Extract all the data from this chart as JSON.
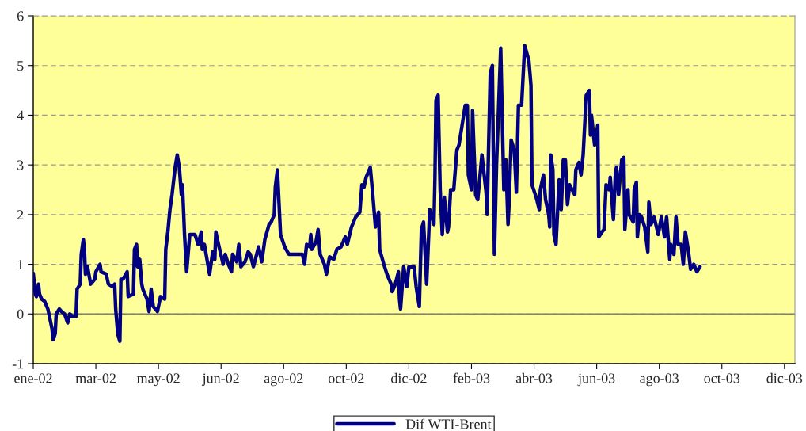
{
  "chart_data": {
    "type": "line",
    "x": [
      "2002-01-01",
      "2002-01-03",
      "2002-01-04",
      "2002-01-06",
      "2002-01-07",
      "2002-01-09",
      "2002-01-12",
      "2002-01-15",
      "2002-01-17",
      "2002-01-19",
      "2002-01-20",
      "2002-01-22",
      "2002-01-23",
      "2002-01-26",
      "2002-01-28",
      "2002-01-31",
      "2002-02-03",
      "2002-02-05",
      "2002-02-08",
      "2002-02-11",
      "2002-02-12",
      "2002-02-15",
      "2002-02-16",
      "2002-02-18",
      "2002-02-19",
      "2002-02-20",
      "2002-02-22",
      "2002-02-25",
      "2002-03-01",
      "2002-03-02",
      "2002-03-06",
      "2002-03-07",
      "2002-03-12",
      "2002-03-14",
      "2002-03-18",
      "2002-03-20",
      "2002-03-21",
      "2002-03-23",
      "2002-03-25",
      "2002-03-26",
      "2002-03-28",
      "2002-04-01",
      "2002-04-02",
      "2002-04-07",
      "2002-04-08",
      "2002-04-10",
      "2002-04-11",
      "2002-04-13",
      "2002-04-15",
      "2002-04-16",
      "2002-04-20",
      "2002-04-22",
      "2002-04-24",
      "2002-04-26",
      "2002-04-30",
      "2002-05-03",
      "2002-05-07",
      "2002-05-08",
      "2002-05-10",
      "2002-05-12",
      "2002-05-14",
      "2002-05-17",
      "2002-05-19",
      "2002-05-21",
      "2002-05-23",
      "2002-05-24",
      "2002-05-26",
      "2002-05-28",
      "2002-05-29",
      "2002-05-31",
      "2002-06-05",
      "2002-06-08",
      "2002-06-11",
      "2002-06-12",
      "2002-06-14",
      "2002-06-19",
      "2002-06-22",
      "2002-06-24",
      "2002-06-25",
      "2002-06-27",
      "2002-07-02",
      "2002-07-04",
      "2002-07-07",
      "2002-07-10",
      "2002-07-11",
      "2002-07-15",
      "2002-07-17",
      "2002-07-19",
      "2002-07-23",
      "2002-07-26",
      "2002-07-28",
      "2002-07-31",
      "2002-08-05",
      "2002-08-08",
      "2002-08-11",
      "2002-08-15",
      "2002-08-17",
      "2002-08-20",
      "2002-08-21",
      "2002-08-23",
      "2002-08-26",
      "2002-08-30",
      "2002-09-03",
      "2002-09-09",
      "2002-09-16",
      "2002-09-18",
      "2002-09-20",
      "2002-09-23",
      "2002-09-24",
      "2002-09-25",
      "2002-09-29",
      "2002-10-01",
      "2002-10-03",
      "2002-10-07",
      "2002-10-09",
      "2002-10-12",
      "2002-10-16",
      "2002-10-19",
      "2002-10-23",
      "2002-10-27",
      "2002-10-29",
      "2002-11-02",
      "2002-11-06",
      "2002-11-10",
      "2002-11-12",
      "2002-11-14",
      "2002-11-16",
      "2002-11-20",
      "2002-11-22",
      "2002-11-25",
      "2002-11-28",
      "2002-11-29",
      "2002-12-03",
      "2002-12-06",
      "2002-12-10",
      "2002-12-11",
      "2002-12-14",
      "2002-12-17",
      "2002-12-18",
      "2002-12-19",
      "2002-12-22",
      "2002-12-25",
      "2002-12-27",
      "2003-01-01",
      "2003-01-03",
      "2003-01-06",
      "2003-01-08",
      "2003-01-10",
      "2003-01-12",
      "2003-01-13",
      "2003-01-16",
      "2003-01-18",
      "2003-01-20",
      "2003-01-21",
      "2003-01-22",
      "2003-01-24",
      "2003-01-26",
      "2003-01-28",
      "2003-01-30",
      "2003-02-02",
      "2003-02-03",
      "2003-02-05",
      "2003-02-08",
      "2003-02-11",
      "2003-02-13",
      "2003-02-16",
      "2003-02-19",
      "2003-02-21",
      "2003-02-22",
      "2003-02-25",
      "2003-02-26",
      "2003-03-01",
      "2003-03-03",
      "2003-03-07",
      "2003-03-11",
      "2003-03-12",
      "2003-03-13",
      "2003-03-15",
      "2003-03-17",
      "2003-03-19",
      "2003-03-21",
      "2003-03-25",
      "2003-03-28",
      "2003-03-30",
      "2003-04-01",
      "2003-04-02",
      "2003-04-04",
      "2003-04-07",
      "2003-04-09",
      "2003-04-11",
      "2003-04-14",
      "2003-04-17",
      "2003-04-21",
      "2003-04-23",
      "2003-04-24",
      "2003-04-28",
      "2003-05-01",
      "2003-05-02",
      "2003-05-05",
      "2003-05-07",
      "2003-05-10",
      "2003-05-11",
      "2003-05-12",
      "2003-05-14",
      "2003-05-15",
      "2003-05-17",
      "2003-05-20",
      "2003-05-22",
      "2003-05-24",
      "2003-05-26",
      "2003-05-28",
      "2003-05-30",
      "2003-06-04",
      "2003-06-05",
      "2003-06-08",
      "2003-06-10",
      "2003-06-12",
      "2003-06-13",
      "2003-06-15",
      "2003-06-18",
      "2003-06-19",
      "2003-06-20",
      "2003-06-23",
      "2003-06-26",
      "2003-06-27",
      "2003-06-30",
      "2003-07-02",
      "2003-07-04",
      "2003-07-07",
      "2003-07-08",
      "2003-07-11",
      "2003-07-13",
      "2003-07-14",
      "2003-07-16",
      "2003-07-19",
      "2003-07-21",
      "2003-07-22",
      "2003-07-25",
      "2003-07-26",
      "2003-07-30",
      "2003-07-31",
      "2003-08-02",
      "2003-08-03",
      "2003-08-05",
      "2003-08-07",
      "2003-08-10",
      "2003-08-13",
      "2003-08-14",
      "2003-08-16",
      "2003-08-19",
      "2003-08-23",
      "2003-08-26",
      "2003-08-29",
      "2003-08-31",
      "2003-09-03",
      "2003-09-04",
      "2003-09-07",
      "2003-09-09",
      "2003-09-11",
      "2003-09-14",
      "2003-09-16",
      "2003-09-18",
      "2003-09-21",
      "2003-09-23",
      "2003-09-26",
      "2003-09-27",
      "2003-09-29",
      "2003-10-02"
    ],
    "series": [
      {
        "name": "Dif WTI-Brent",
        "color": "#000080",
        "values": [
          0.82,
          0.4,
          0.35,
          0.6,
          0.4,
          0.3,
          0.25,
          0.1,
          -0.1,
          -0.3,
          -0.52,
          -0.4,
          0.0,
          0.1,
          0.05,
          0.0,
          -0.18,
          0.0,
          -0.05,
          -0.05,
          0.5,
          0.6,
          1.2,
          1.5,
          1.3,
          0.8,
          0.95,
          0.6,
          0.7,
          0.85,
          1.0,
          0.85,
          0.8,
          0.6,
          0.55,
          0.6,
          0.1,
          -0.4,
          -0.55,
          0.7,
          0.7,
          0.85,
          0.35,
          0.4,
          1.3,
          1.4,
          0.95,
          1.1,
          0.6,
          0.5,
          0.3,
          0.05,
          0.5,
          0.15,
          0.05,
          0.35,
          0.3,
          1.3,
          1.65,
          2.1,
          2.4,
          2.95,
          3.2,
          2.95,
          2.4,
          2.6,
          1.6,
          0.85,
          1.1,
          1.6,
          1.6,
          1.4,
          1.65,
          1.3,
          1.4,
          0.8,
          1.25,
          1.1,
          1.65,
          1.45,
          1.0,
          1.2,
          1.0,
          0.85,
          1.2,
          1.05,
          1.4,
          0.95,
          1.05,
          1.25,
          1.2,
          0.95,
          1.35,
          1.05,
          1.5,
          1.8,
          1.85,
          2.0,
          2.55,
          2.9,
          1.6,
          1.35,
          1.2,
          1.2,
          1.2,
          1.0,
          1.4,
          1.35,
          1.6,
          1.3,
          1.45,
          1.7,
          1.2,
          1.0,
          0.8,
          1.15,
          1.1,
          1.3,
          1.35,
          1.55,
          1.4,
          1.75,
          1.95,
          2.05,
          2.6,
          2.55,
          2.75,
          2.95,
          2.5,
          1.75,
          2.05,
          1.3,
          1.0,
          0.8,
          0.6,
          0.45,
          0.6,
          0.85,
          0.3,
          0.1,
          0.95,
          0.55,
          0.95,
          0.95,
          0.55,
          0.15,
          1.7,
          1.85,
          1.05,
          0.6,
          2.1,
          2.0,
          1.8,
          2.75,
          4.3,
          4.4,
          2.5,
          1.6,
          2.35,
          1.65,
          1.75,
          2.5,
          2.5,
          3.3,
          3.4,
          3.8,
          4.2,
          4.2,
          2.8,
          2.5,
          4.1,
          2.4,
          2.3,
          3.2,
          2.45,
          2.0,
          3.0,
          4.85,
          5.0,
          1.2,
          3.0,
          5.35,
          2.5,
          3.1,
          1.8,
          2.2,
          3.5,
          3.3,
          2.45,
          4.2,
          4.2,
          5.4,
          5.1,
          4.6,
          2.6,
          2.35,
          2.1,
          2.5,
          2.8,
          2.3,
          2.0,
          1.75,
          3.2,
          2.9,
          1.6,
          1.4,
          2.7,
          2.1,
          3.1,
          3.1,
          2.2,
          2.6,
          2.4,
          2.9,
          3.05,
          2.8,
          3.2,
          3.6,
          4.4,
          4.5,
          3.6,
          4.0,
          3.4,
          3.8,
          1.55,
          1.65,
          1.7,
          2.6,
          2.5,
          2.75,
          1.9,
          2.85,
          2.95,
          2.4,
          3.1,
          3.15,
          1.7,
          2.5,
          2.0,
          1.85,
          2.5,
          2.65,
          1.55,
          2.0,
          1.95,
          1.75,
          1.25,
          2.25,
          1.8,
          1.95,
          1.6,
          1.95,
          1.55,
          1.95,
          1.1,
          1.4,
          1.2,
          1.95,
          1.4,
          1.4,
          1.0,
          1.65,
          1.25,
          0.9,
          1.0,
          0.95,
          0.85,
          0.95
        ]
      }
    ],
    "xlim": [
      "2002-01-01",
      "2004-01-01"
    ],
    "xticks": [
      {
        "value": "2002-01-01",
        "label": "ene-02"
      },
      {
        "value": "2002-03-02",
        "label": "mar-02"
      },
      {
        "value": "2002-05-01",
        "label": "may-02"
      },
      {
        "value": "2002-06-30",
        "label": "jun-02"
      },
      {
        "value": "2002-08-29",
        "label": "ago-02"
      },
      {
        "value": "2002-10-28",
        "label": "oct-02"
      },
      {
        "value": "2002-12-27",
        "label": "dic-02"
      },
      {
        "value": "2003-02-25",
        "label": "feb-03"
      },
      {
        "value": "2003-04-26",
        "label": "abr-03"
      },
      {
        "value": "2003-06-25",
        "label": "jun-03"
      },
      {
        "value": "2003-08-24",
        "label": "ago-03"
      },
      {
        "value": "2003-10-23",
        "label": "oct-03"
      },
      {
        "value": "2003-12-22",
        "label": "dic-03"
      }
    ],
    "ylim": [
      -1,
      6
    ],
    "yticks": [
      -1,
      0,
      1,
      2,
      3,
      4,
      5,
      6
    ],
    "grid": "y",
    "ref_lines": [
      {
        "axis": "y",
        "value": 0,
        "color": "#808080",
        "line_style": "solid"
      }
    ],
    "legend": "bottom",
    "line_style": "solid",
    "marker": "none"
  }
}
